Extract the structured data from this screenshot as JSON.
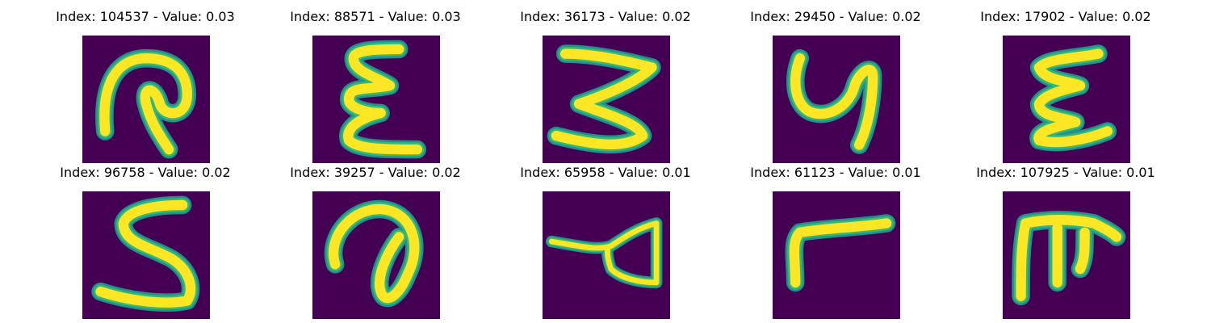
{
  "panels": [
    {
      "title": "Index: 104537 - Value: 0.03",
      "glyph": "handwritten-glyph-loop-hook"
    },
    {
      "title": "Index: 88571 - Value: 0.03",
      "glyph": "handwritten-glyph-epsilon"
    },
    {
      "title": "Index: 36173 - Value: 0.02",
      "glyph": "handwritten-glyph-zigzag-3"
    },
    {
      "title": "Index: 29450 - Value: 0.02",
      "glyph": "handwritten-glyph-y"
    },
    {
      "title": "Index: 17902 - Value: 0.02",
      "glyph": "handwritten-glyph-epsilon-bold"
    },
    {
      "title": "Index: 96758 - Value: 0.02",
      "glyph": "handwritten-glyph-s"
    },
    {
      "title": "Index: 39257 - Value: 0.02",
      "glyph": "handwritten-glyph-loop"
    },
    {
      "title": "Index: 65958 - Value: 0.01",
      "glyph": "handwritten-glyph-triangle-tail"
    },
    {
      "title": "Index: 61123 - Value: 0.01",
      "glyph": "handwritten-glyph-r"
    },
    {
      "title": "Index: 107925 - Value: 0.01",
      "glyph": "handwritten-glyph-table"
    }
  ],
  "colors": {
    "background": "#440154",
    "stroke_core": "#fde725",
    "stroke_mid": "#35b779",
    "stroke_edge": "#21918c"
  }
}
